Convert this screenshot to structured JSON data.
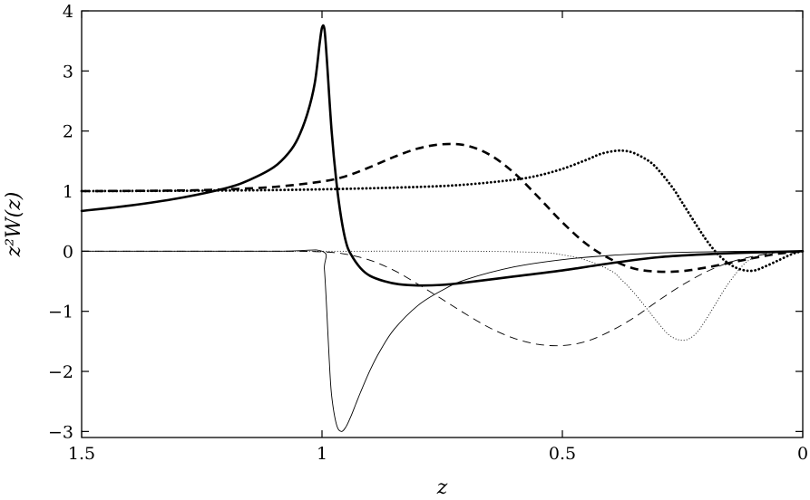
{
  "chart_data": {
    "type": "line",
    "title": "",
    "xlabel": "z",
    "ylabel": "z²W(z)",
    "xlim": [
      1.5,
      0
    ],
    "ylim": [
      -3.1,
      4
    ],
    "x_reversed": true,
    "grid": false,
    "legend": "none",
    "xticks": [
      1.5,
      1,
      0.5,
      0
    ],
    "xtick_labels": [
      "1.5",
      "1",
      "0.5",
      "0"
    ],
    "yticks": [
      -3,
      -2,
      -1,
      0,
      1,
      2,
      3,
      4
    ],
    "ytick_labels": [
      "−3",
      "−2",
      "−1",
      "0",
      "1",
      "2",
      "3",
      "4"
    ],
    "series": [
      {
        "style": "thick-solid",
        "x": [
          1.5,
          1.4,
          1.3,
          1.2,
          1.15,
          1.1,
          1.07,
          1.05,
          1.03,
          1.015,
          1.005,
          1.0,
          0.995,
          0.99,
          0.98,
          0.97,
          0.96,
          0.95,
          0.94,
          0.92,
          0.9,
          0.87,
          0.84,
          0.8,
          0.75,
          0.7,
          0.6,
          0.5,
          0.4,
          0.3,
          0.2,
          0.1,
          0.0
        ],
        "y": [
          0.67,
          0.76,
          0.88,
          1.05,
          1.19,
          1.4,
          1.63,
          1.88,
          2.3,
          2.8,
          3.45,
          3.72,
          3.7,
          3.2,
          2.0,
          1.15,
          0.55,
          0.15,
          -0.05,
          -0.28,
          -0.41,
          -0.5,
          -0.55,
          -0.57,
          -0.56,
          -0.52,
          -0.42,
          -0.32,
          -0.2,
          -0.1,
          -0.05,
          -0.02,
          0.0
        ]
      },
      {
        "style": "thick-dashed",
        "x": [
          1.5,
          1.3,
          1.2,
          1.1,
          1.0,
          0.95,
          0.9,
          0.85,
          0.8,
          0.75,
          0.7,
          0.65,
          0.6,
          0.55,
          0.5,
          0.45,
          0.4,
          0.35,
          0.3,
          0.25,
          0.2,
          0.15,
          0.1,
          0.05,
          0.0
        ],
        "y": [
          1.0,
          1.01,
          1.03,
          1.07,
          1.16,
          1.25,
          1.4,
          1.57,
          1.71,
          1.78,
          1.76,
          1.6,
          1.3,
          0.9,
          0.48,
          0.12,
          -0.13,
          -0.29,
          -0.34,
          -0.33,
          -0.27,
          -0.19,
          -0.11,
          -0.04,
          0.0
        ]
      },
      {
        "style": "thick-dotted",
        "x": [
          1.5,
          1.2,
          1.0,
          0.8,
          0.7,
          0.6,
          0.55,
          0.5,
          0.45,
          0.42,
          0.39,
          0.37,
          0.35,
          0.32,
          0.3,
          0.27,
          0.25,
          0.22,
          0.2,
          0.18,
          0.16,
          0.14,
          0.12,
          0.1,
          0.08,
          0.05,
          0.02,
          0.0
        ],
        "y": [
          1.0,
          1.01,
          1.03,
          1.07,
          1.11,
          1.19,
          1.26,
          1.37,
          1.52,
          1.62,
          1.67,
          1.67,
          1.63,
          1.5,
          1.35,
          1.05,
          0.8,
          0.42,
          0.18,
          -0.02,
          -0.17,
          -0.27,
          -0.32,
          -0.32,
          -0.26,
          -0.15,
          -0.04,
          0.0
        ]
      },
      {
        "style": "thin-solid",
        "x": [
          1.5,
          1.1,
          1.0,
          0.995,
          0.99,
          0.985,
          0.98,
          0.97,
          0.96,
          0.95,
          0.94,
          0.93,
          0.92,
          0.9,
          0.88,
          0.85,
          0.8,
          0.75,
          0.7,
          0.6,
          0.5,
          0.4,
          0.3,
          0.2,
          0.1,
          0.0
        ],
        "y": [
          0.0,
          0.0,
          0.0,
          -0.3,
          -1.0,
          -1.8,
          -2.4,
          -2.88,
          -3.0,
          -2.92,
          -2.75,
          -2.55,
          -2.35,
          -1.98,
          -1.67,
          -1.3,
          -0.9,
          -0.65,
          -0.47,
          -0.26,
          -0.14,
          -0.07,
          -0.03,
          -0.01,
          0.0,
          0.0
        ]
      },
      {
        "style": "thin-dashed",
        "x": [
          1.5,
          1.1,
          1.0,
          0.95,
          0.9,
          0.85,
          0.8,
          0.75,
          0.7,
          0.65,
          0.6,
          0.55,
          0.5,
          0.45,
          0.4,
          0.35,
          0.3,
          0.25,
          0.2,
          0.15,
          0.1,
          0.05,
          0.0
        ],
        "y": [
          0.0,
          0.0,
          -0.01,
          -0.05,
          -0.15,
          -0.32,
          -0.55,
          -0.8,
          -1.05,
          -1.28,
          -1.45,
          -1.55,
          -1.57,
          -1.5,
          -1.33,
          -1.1,
          -0.82,
          -0.56,
          -0.34,
          -0.18,
          -0.08,
          -0.02,
          0.0
        ]
      },
      {
        "style": "thin-dotted",
        "x": [
          1.5,
          1.0,
          0.7,
          0.55,
          0.5,
          0.45,
          0.4,
          0.38,
          0.35,
          0.32,
          0.3,
          0.28,
          0.26,
          0.24,
          0.22,
          0.2,
          0.18,
          0.16,
          0.14,
          0.12,
          0.1,
          0.07,
          0.04,
          0.0
        ],
        "y": [
          0.0,
          0.0,
          0.0,
          -0.02,
          -0.06,
          -0.15,
          -0.32,
          -0.45,
          -0.7,
          -1.0,
          -1.2,
          -1.38,
          -1.47,
          -1.47,
          -1.35,
          -1.12,
          -0.86,
          -0.6,
          -0.38,
          -0.2,
          -0.1,
          -0.03,
          -0.01,
          0.0
        ]
      }
    ]
  }
}
